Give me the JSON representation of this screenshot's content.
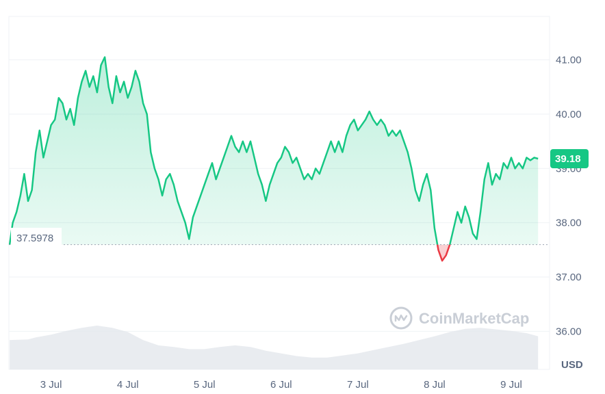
{
  "watermark": {
    "text": "CoinMarketCap",
    "icon": "coinmarketcap-logo-icon"
  },
  "chart_data": {
    "type": "area",
    "y_unit": "USD",
    "ylim": [
      35.3,
      41.8
    ],
    "y_ticks": [
      "36.00",
      "37.00",
      "38.00",
      "39.00",
      "40.00",
      "41.00"
    ],
    "x_ticks": [
      "3 Jul",
      "4 Jul",
      "5 Jul",
      "6 Jul",
      "7 Jul",
      "8 Jul",
      "9 Jul"
    ],
    "x_tick_positions": [
      3,
      4,
      5,
      6,
      7,
      8,
      9
    ],
    "xlim": [
      2.45,
      9.5
    ],
    "baseline": {
      "value": 37.5978,
      "label": "37.5978"
    },
    "last_price": {
      "value": 39.18,
      "label": "39.18"
    },
    "colors": {
      "up": "#16c784",
      "down": "#ea3943",
      "fill_top": "#16c784"
    },
    "grid": true,
    "price_points": [
      [
        2.46,
        37.6
      ],
      [
        2.5,
        38.0
      ],
      [
        2.55,
        38.2
      ],
      [
        2.6,
        38.5
      ],
      [
        2.65,
        38.9
      ],
      [
        2.7,
        38.4
      ],
      [
        2.75,
        38.6
      ],
      [
        2.8,
        39.3
      ],
      [
        2.85,
        39.7
      ],
      [
        2.9,
        39.2
      ],
      [
        2.95,
        39.5
      ],
      [
        3.0,
        39.8
      ],
      [
        3.05,
        39.9
      ],
      [
        3.1,
        40.3
      ],
      [
        3.15,
        40.2
      ],
      [
        3.2,
        39.9
      ],
      [
        3.25,
        40.1
      ],
      [
        3.3,
        39.8
      ],
      [
        3.35,
        40.3
      ],
      [
        3.4,
        40.6
      ],
      [
        3.45,
        40.8
      ],
      [
        3.5,
        40.5
      ],
      [
        3.55,
        40.7
      ],
      [
        3.6,
        40.4
      ],
      [
        3.65,
        40.9
      ],
      [
        3.7,
        41.05
      ],
      [
        3.75,
        40.5
      ],
      [
        3.8,
        40.2
      ],
      [
        3.85,
        40.7
      ],
      [
        3.9,
        40.4
      ],
      [
        3.95,
        40.6
      ],
      [
        4.0,
        40.3
      ],
      [
        4.05,
        40.5
      ],
      [
        4.1,
        40.8
      ],
      [
        4.15,
        40.6
      ],
      [
        4.2,
        40.2
      ],
      [
        4.25,
        40.0
      ],
      [
        4.3,
        39.3
      ],
      [
        4.35,
        39.0
      ],
      [
        4.4,
        38.8
      ],
      [
        4.45,
        38.5
      ],
      [
        4.5,
        38.8
      ],
      [
        4.55,
        38.9
      ],
      [
        4.6,
        38.7
      ],
      [
        4.65,
        38.4
      ],
      [
        4.7,
        38.2
      ],
      [
        4.75,
        38.0
      ],
      [
        4.8,
        37.7
      ],
      [
        4.85,
        38.1
      ],
      [
        4.9,
        38.3
      ],
      [
        4.95,
        38.5
      ],
      [
        5.0,
        38.7
      ],
      [
        5.05,
        38.9
      ],
      [
        5.1,
        39.1
      ],
      [
        5.15,
        38.8
      ],
      [
        5.2,
        39.0
      ],
      [
        5.25,
        39.2
      ],
      [
        5.3,
        39.4
      ],
      [
        5.35,
        39.6
      ],
      [
        5.4,
        39.4
      ],
      [
        5.45,
        39.3
      ],
      [
        5.5,
        39.5
      ],
      [
        5.55,
        39.3
      ],
      [
        5.6,
        39.5
      ],
      [
        5.65,
        39.2
      ],
      [
        5.7,
        38.9
      ],
      [
        5.75,
        38.7
      ],
      [
        5.8,
        38.4
      ],
      [
        5.85,
        38.7
      ],
      [
        5.9,
        38.9
      ],
      [
        5.95,
        39.1
      ],
      [
        6.0,
        39.2
      ],
      [
        6.05,
        39.4
      ],
      [
        6.1,
        39.3
      ],
      [
        6.15,
        39.1
      ],
      [
        6.2,
        39.2
      ],
      [
        6.25,
        39.0
      ],
      [
        6.3,
        38.8
      ],
      [
        6.35,
        38.9
      ],
      [
        6.4,
        38.8
      ],
      [
        6.45,
        39.0
      ],
      [
        6.5,
        38.9
      ],
      [
        6.55,
        39.1
      ],
      [
        6.6,
        39.3
      ],
      [
        6.65,
        39.5
      ],
      [
        6.7,
        39.3
      ],
      [
        6.75,
        39.5
      ],
      [
        6.8,
        39.3
      ],
      [
        6.85,
        39.6
      ],
      [
        6.9,
        39.8
      ],
      [
        6.95,
        39.9
      ],
      [
        7.0,
        39.7
      ],
      [
        7.05,
        39.8
      ],
      [
        7.1,
        39.9
      ],
      [
        7.15,
        40.05
      ],
      [
        7.2,
        39.9
      ],
      [
        7.25,
        39.8
      ],
      [
        7.3,
        39.9
      ],
      [
        7.35,
        39.8
      ],
      [
        7.4,
        39.6
      ],
      [
        7.45,
        39.7
      ],
      [
        7.5,
        39.6
      ],
      [
        7.55,
        39.7
      ],
      [
        7.6,
        39.5
      ],
      [
        7.65,
        39.3
      ],
      [
        7.7,
        39.0
      ],
      [
        7.75,
        38.6
      ],
      [
        7.8,
        38.4
      ],
      [
        7.85,
        38.7
      ],
      [
        7.9,
        38.9
      ],
      [
        7.95,
        38.6
      ],
      [
        8.0,
        37.9
      ],
      [
        8.05,
        37.5
      ],
      [
        8.1,
        37.3
      ],
      [
        8.15,
        37.4
      ],
      [
        8.2,
        37.6
      ],
      [
        8.25,
        37.9
      ],
      [
        8.3,
        38.2
      ],
      [
        8.35,
        38.0
      ],
      [
        8.4,
        38.3
      ],
      [
        8.45,
        38.1
      ],
      [
        8.5,
        37.8
      ],
      [
        8.55,
        37.7
      ],
      [
        8.6,
        38.2
      ],
      [
        8.65,
        38.8
      ],
      [
        8.7,
        39.1
      ],
      [
        8.75,
        38.7
      ],
      [
        8.8,
        38.9
      ],
      [
        8.85,
        38.8
      ],
      [
        8.9,
        39.1
      ],
      [
        8.95,
        39.0
      ],
      [
        9.0,
        39.2
      ],
      [
        9.05,
        39.0
      ],
      [
        9.1,
        39.1
      ],
      [
        9.15,
        39.0
      ],
      [
        9.2,
        39.2
      ],
      [
        9.25,
        39.15
      ],
      [
        9.3,
        39.2
      ],
      [
        9.35,
        39.18
      ]
    ],
    "volume_points": [
      [
        2.46,
        0.55
      ],
      [
        2.7,
        0.56
      ],
      [
        2.8,
        0.6
      ],
      [
        3.0,
        0.65
      ],
      [
        3.2,
        0.72
      ],
      [
        3.4,
        0.78
      ],
      [
        3.6,
        0.82
      ],
      [
        3.8,
        0.78
      ],
      [
        4.0,
        0.7
      ],
      [
        4.2,
        0.55
      ],
      [
        4.4,
        0.45
      ],
      [
        4.6,
        0.42
      ],
      [
        4.8,
        0.38
      ],
      [
        5.0,
        0.38
      ],
      [
        5.2,
        0.42
      ],
      [
        5.4,
        0.45
      ],
      [
        5.6,
        0.42
      ],
      [
        5.8,
        0.35
      ],
      [
        6.0,
        0.3
      ],
      [
        6.2,
        0.25
      ],
      [
        6.4,
        0.22
      ],
      [
        6.6,
        0.22
      ],
      [
        6.8,
        0.26
      ],
      [
        7.0,
        0.3
      ],
      [
        7.2,
        0.36
      ],
      [
        7.4,
        0.42
      ],
      [
        7.6,
        0.48
      ],
      [
        7.8,
        0.55
      ],
      [
        8.0,
        0.62
      ],
      [
        8.2,
        0.7
      ],
      [
        8.4,
        0.76
      ],
      [
        8.6,
        0.78
      ],
      [
        8.8,
        0.75
      ],
      [
        9.0,
        0.72
      ],
      [
        9.2,
        0.68
      ],
      [
        9.35,
        0.62
      ]
    ]
  }
}
